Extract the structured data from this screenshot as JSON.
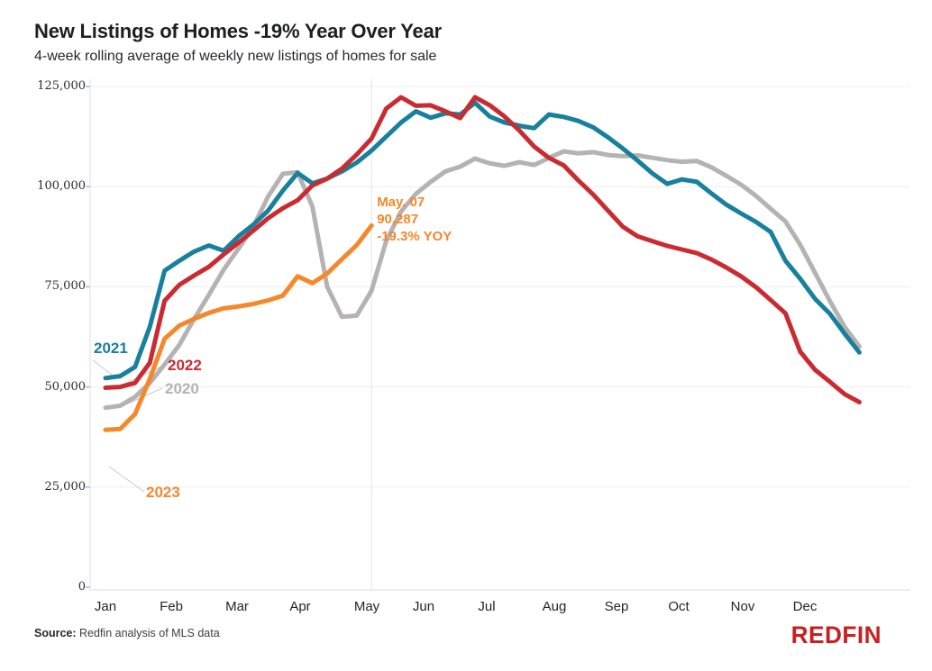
{
  "header": {
    "title": "New Listings of Homes -19% Year Over Year",
    "subtitle": "4-week rolling average of weekly new listings of homes for sale"
  },
  "chart_data": {
    "type": "line",
    "title": "New Listings of Homes -19% Year Over Year",
    "subtitle": "4-week rolling average of weekly new listings of homes for sale",
    "x_unit": "week of year (Jan through Dec, weekly points)",
    "x_tick_labels": [
      "Jan",
      "Feb",
      "Mar",
      "Apr",
      "May",
      "Jun",
      "Jul",
      "Aug",
      "Sep",
      "Oct",
      "Nov",
      "Dec"
    ],
    "y_ticks": [
      0,
      25000,
      50000,
      75000,
      100000,
      125000
    ],
    "y_tick_labels": [
      "0",
      "25,000",
      "50,000",
      "75,000",
      "100,000",
      "125,000"
    ],
    "ylim": [
      0,
      129000
    ],
    "grid": "horizontal",
    "legend_position": "inline-labels-left",
    "marker_line_week": 18,
    "series": [
      {
        "name": "2020",
        "color": "#b5b2b2",
        "values": [
          44800,
          45300,
          47500,
          51000,
          55600,
          60500,
          67000,
          73000,
          79300,
          84500,
          90000,
          97500,
          103200,
          103600,
          95000,
          75000,
          67500,
          67800,
          74000,
          86500,
          93800,
          98200,
          101200,
          103800,
          105000,
          107000,
          105800,
          105200,
          106100,
          105400,
          107200,
          108800,
          108300,
          108600,
          107900,
          107600,
          107800,
          107200,
          106600,
          106200,
          106400,
          104800,
          102700,
          100500,
          97700,
          94500,
          91300,
          85500,
          78500,
          71500,
          65000,
          60100
        ]
      },
      {
        "name": "2021",
        "color": "#17809c",
        "values": [
          52200,
          52700,
          55000,
          65000,
          79000,
          81500,
          83800,
          85300,
          84000,
          87600,
          90500,
          94000,
          99000,
          103400,
          100800,
          102000,
          103800,
          106000,
          109000,
          112500,
          116000,
          118800,
          117200,
          118300,
          118000,
          120900,
          117500,
          116000,
          115200,
          114600,
          118000,
          117400,
          116400,
          114800,
          112300,
          109500,
          106500,
          103300,
          100700,
          101800,
          101200,
          98300,
          95500,
          93300,
          91200,
          88700,
          81500,
          77000,
          72000,
          68300,
          63300,
          58600
        ]
      },
      {
        "name": "2022",
        "color": "#ca2b31",
        "values": [
          49800,
          50000,
          51000,
          56000,
          71500,
          75500,
          77800,
          80000,
          83100,
          86000,
          89000,
          92100,
          94600,
          96600,
          100300,
          102000,
          104500,
          108000,
          112000,
          119500,
          122300,
          120200,
          120300,
          118800,
          117100,
          122300,
          120300,
          117500,
          114000,
          110000,
          107200,
          105300,
          101500,
          98000,
          94000,
          90000,
          87600,
          86400,
          85200,
          84300,
          83400,
          81800,
          79800,
          77600,
          74900,
          71700,
          68400,
          58800,
          54300,
          51300,
          48200,
          46200
        ]
      },
      {
        "name": "2023",
        "color": "#f6872b",
        "values": [
          39300,
          39500,
          43200,
          52000,
          62000,
          65300,
          67000,
          68500,
          69600,
          70100,
          70700,
          71600,
          72800,
          77600,
          75900,
          78300,
          81900,
          85400,
          90287
        ]
      }
    ],
    "annotation": {
      "week_index": 18,
      "date_label": "May. 07",
      "value_label": "90,287",
      "yoy_label": "-19.3% YOY",
      "color": "#f6872b"
    }
  },
  "footer": {
    "source_label": "Source:",
    "source_text": " Redfin analysis of MLS data",
    "logo_text": "REDFIN"
  }
}
